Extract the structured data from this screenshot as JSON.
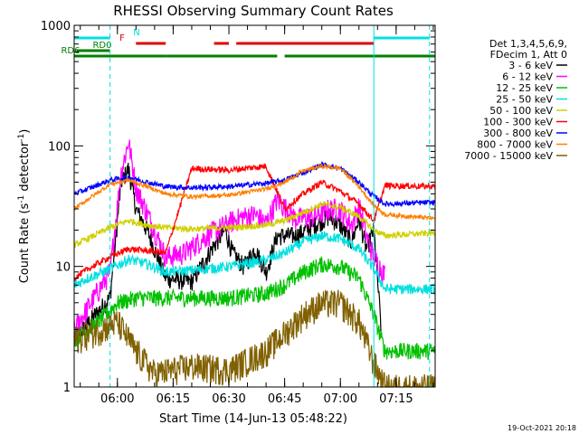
{
  "chart_data": {
    "type": "line",
    "title": "RHESSI Observing Summary Count Rates",
    "xlabel": "Start Time (14-Jun-13 05:48:22)",
    "ylabel": "Count Rate (s",
    "ylabel_sup": "-1",
    "ylabel_rest": " detector",
    "ylabel_close": ")",
    "yscale": "log",
    "xlim": [
      "05:48:22",
      "07:25:30"
    ],
    "ylim": [
      1,
      1000
    ],
    "xticks": [
      "06:00",
      "06:15",
      "06:30",
      "06:45",
      "07:00",
      "07:15"
    ],
    "yticks": [
      "1",
      "10",
      "100",
      "1000"
    ],
    "legend_placement": "right",
    "legend_header": [
      "Det 1,3,4,5,6,9,",
      "FDecim 1, Att 0"
    ],
    "timestamp": "19-Oct-2021 20:18",
    "flags": [
      {
        "label": "N",
        "color": "#00e0e0",
        "intervals": [
          [
            "05:48:22",
            "05:58:00"
          ],
          [
            "07:09:00",
            "07:24:00"
          ]
        ]
      },
      {
        "label": "F",
        "color": "#e00000",
        "intervals": [
          [
            "06:05:00",
            "06:13:00"
          ],
          [
            "06:26:00",
            "06:30:00"
          ],
          [
            "06:32:00",
            "07:09:00"
          ]
        ]
      },
      {
        "label": "RD0",
        "color": "#008000",
        "intervals": [
          [
            "05:49:00",
            "05:58:00"
          ]
        ]
      },
      {
        "label": "RD6",
        "color": "#008000",
        "intervals": [
          [
            "05:48:22",
            "06:13:00"
          ],
          [
            "06:13:00",
            "06:43:00"
          ],
          [
            "06:45:00",
            "07:09:00"
          ],
          [
            "07:09:00",
            "07:25:30"
          ]
        ]
      }
    ],
    "series": [
      {
        "name": "3 - 6 keV",
        "color": "#000000",
        "x": [
          "05:48:22",
          "05:58:00",
          "06:01:00",
          "06:03:00",
          "06:05:00",
          "06:08:00",
          "06:13:00",
          "06:20:00",
          "06:26:00",
          "06:29:00",
          "06:31:00",
          "06:34:00",
          "06:37:00",
          "06:40:00",
          "06:43:00",
          "06:48:00",
          "06:53:00",
          "06:57:00",
          "07:00:00",
          "07:03:00",
          "07:05:00",
          "07:07:00",
          "07:09:00",
          "07:11:00"
        ],
        "y": [
          2.5,
          5.5,
          50,
          65,
          30,
          20,
          8,
          7.5,
          15,
          20,
          13,
          10,
          14,
          9,
          18,
          18,
          22,
          26,
          22,
          16,
          25,
          14,
          20,
          3
        ]
      },
      {
        "name": "6 - 12 keV",
        "color": "#ff00ff",
        "x": [
          "05:48:22",
          "05:58:00",
          "06:01:00",
          "06:03:00",
          "06:05:00",
          "06:08:00",
          "06:13:00",
          "06:18:00",
          "06:25:00",
          "06:29:00",
          "06:31:00",
          "06:34:00",
          "06:37:00",
          "06:40:00",
          "06:43:00",
          "06:48:00",
          "06:53:00",
          "06:57:00",
          "07:00:00",
          "07:03:00",
          "07:05:00",
          "07:07:00",
          "07:09:00",
          "07:12:00"
        ],
        "y": [
          3,
          9,
          60,
          110,
          45,
          28,
          12,
          13,
          19,
          22,
          24,
          26,
          27,
          23,
          36,
          25,
          26,
          30,
          30,
          22,
          32,
          18,
          12,
          8.5
        ]
      },
      {
        "name": "12 - 25 keV",
        "color": "#00c000",
        "x": [
          "05:48:22",
          "05:55:00",
          "06:00:00",
          "06:05:00",
          "06:10:00",
          "06:20:00",
          "06:30:00",
          "06:40:00",
          "06:45:00",
          "06:50:00",
          "06:55:00",
          "07:00:00",
          "07:05:00",
          "07:09:00",
          "07:12:00",
          "07:25:30"
        ],
        "y": [
          2.5,
          3.5,
          5,
          5.5,
          5.5,
          5.5,
          5.5,
          6,
          7,
          9,
          10.5,
          10,
          8,
          4,
          2,
          2
        ]
      },
      {
        "name": "25 - 50 keV",
        "color": "#00e0e0",
        "x": [
          "05:48:22",
          "05:52:00",
          "05:58:00",
          "06:03:00",
          "06:08:00",
          "06:13:00",
          "06:20:00",
          "06:30:00",
          "06:40:00",
          "06:45:00",
          "06:50:00",
          "06:55:00",
          "07:00:00",
          "07:05:00",
          "07:09:00",
          "07:12:00",
          "07:25:30"
        ],
        "y": [
          7,
          8,
          9.5,
          11.5,
          10.5,
          9,
          9.3,
          10,
          11.3,
          13,
          16,
          18,
          17,
          14,
          9.5,
          6.5,
          6.5
        ]
      },
      {
        "name": "50 - 100 keV",
        "color": "#d0d000",
        "x": [
          "05:48:22",
          "05:52:00",
          "05:58:00",
          "06:03:00",
          "06:08:00",
          "06:13:00",
          "06:20:00",
          "06:30:00",
          "06:40:00",
          "06:45:00",
          "06:50:00",
          "06:55:00",
          "07:00:00",
          "07:05:00",
          "07:09:00",
          "07:12:00",
          "07:25:30"
        ],
        "y": [
          15,
          17,
          21,
          24,
          22,
          21,
          20.5,
          21,
          22,
          24,
          28,
          33,
          31,
          26,
          20,
          18,
          19
        ]
      },
      {
        "name": "100 - 300 keV",
        "color": "#ff0000",
        "x": [
          "05:48:22",
          "05:52:00",
          "05:58:00",
          "06:03:00",
          "06:08:00",
          "06:13:00",
          "06:20:00",
          "06:30:00",
          "06:40:00",
          "06:45:00",
          "06:50:00",
          "06:55:00",
          "07:00:00",
          "07:05:00",
          "07:09:00",
          "07:12:00",
          "07:25:30"
        ],
        "y": [
          8,
          9.5,
          12,
          14,
          13.5,
          13,
          65,
          63,
          68,
          30,
          40,
          50,
          42,
          33,
          24,
          47,
          46
        ]
      },
      {
        "name": "300 - 800 keV",
        "color": "#0000ff",
        "x": [
          "05:48:22",
          "05:52:00",
          "05:58:00",
          "06:03:00",
          "06:08:00",
          "06:13:00",
          "06:20:00",
          "06:30:00",
          "06:40:00",
          "06:45:00",
          "06:50:00",
          "06:55:00",
          "07:00:00",
          "07:05:00",
          "07:09:00",
          "07:12:00",
          "07:25:30"
        ],
        "y": [
          40,
          44,
          52,
          55,
          50,
          46,
          45,
          46,
          49,
          52,
          60,
          70,
          65,
          50,
          38,
          33,
          34
        ]
      },
      {
        "name": "800 - 7000 keV",
        "color": "#ff8000",
        "x": [
          "05:48:22",
          "05:52:00",
          "05:58:00",
          "06:03:00",
          "06:08:00",
          "06:13:00",
          "06:20:00",
          "06:30:00",
          "06:40:00",
          "06:45:00",
          "06:50:00",
          "06:55:00",
          "07:00:00",
          "07:05:00",
          "07:09:00",
          "07:12:00",
          "07:25:30"
        ],
        "y": [
          30,
          36,
          48,
          52,
          46,
          40,
          38,
          39,
          44,
          50,
          62,
          68,
          65,
          46,
          32,
          27,
          25
        ]
      },
      {
        "name": "7000 - 15000 keV",
        "color": "#806000",
        "x": [
          "05:48:22",
          "05:55:00",
          "06:00:00",
          "06:05:00",
          "06:10:00",
          "06:20:00",
          "06:30:00",
          "06:40:00",
          "06:45:00",
          "06:50:00",
          "06:55:00",
          "07:00:00",
          "07:05:00",
          "07:09:00",
          "07:12:00",
          "07:25:30"
        ],
        "y": [
          2.5,
          3,
          3.5,
          2,
          1.3,
          1.5,
          1.4,
          2,
          2.8,
          4,
          5,
          5,
          3.5,
          1.6,
          1,
          1
        ]
      }
    ]
  }
}
